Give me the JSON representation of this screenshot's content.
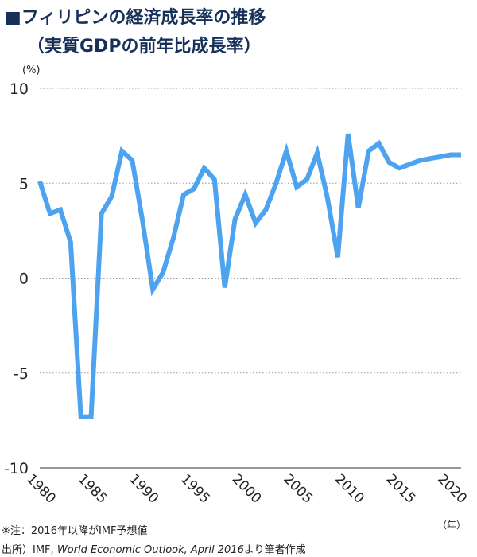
{
  "header": {
    "title": "■フィリピンの経済成長率の推移",
    "subtitle": "（実質GDPの前年比成長率）"
  },
  "footer": {
    "note": "※注：2016年以降がIMF予想値",
    "source_prefix": "出所）IMF,",
    "source_title": "World Economic Outlook, April 2016",
    "source_suffix": "より筆者作成"
  },
  "chart_data": {
    "type": "line",
    "title": "■フィリピンの経済成長率の推移",
    "subtitle": "（実質GDPの前年比成長率）",
    "ylabel": "(%)",
    "xlabel": "（年）",
    "ylim": [
      -10,
      10
    ],
    "xlim": [
      1980,
      2021
    ],
    "yticks": [
      10,
      5,
      0,
      -5,
      -10
    ],
    "ytick_labels": [
      "10",
      "5",
      "0",
      "-5",
      "-10"
    ],
    "xticks": [
      1980,
      1985,
      1990,
      1995,
      2000,
      2005,
      2010,
      2015,
      2020
    ],
    "xtick_labels": [
      "1980",
      "1985",
      "1990",
      "1995",
      "2000",
      "2005",
      "2010",
      "2015",
      "2020"
    ],
    "grid": "horizontal-dotted",
    "color": "#4da3f0",
    "x": [
      1980,
      1981,
      1982,
      1983,
      1984,
      1985,
      1986,
      1987,
      1988,
      1989,
      1990,
      1991,
      1992,
      1993,
      1994,
      1995,
      1996,
      1997,
      1998,
      1999,
      2000,
      2001,
      2002,
      2003,
      2004,
      2005,
      2006,
      2007,
      2008,
      2009,
      2010,
      2011,
      2012,
      2013,
      2014,
      2015,
      2016,
      2017,
      2018,
      2019,
      2020,
      2021
    ],
    "values": [
      5.1,
      3.4,
      3.6,
      1.9,
      -7.3,
      -7.3,
      3.4,
      4.3,
      6.7,
      6.2,
      3.0,
      -0.6,
      0.3,
      2.1,
      4.4,
      4.7,
      5.8,
      5.2,
      -0.5,
      3.1,
      4.4,
      2.9,
      3.6,
      5.0,
      6.7,
      4.8,
      5.2,
      6.6,
      4.2,
      1.1,
      7.6,
      3.7,
      6.7,
      7.1,
      6.1,
      5.8,
      6.0,
      6.2,
      6.3,
      6.4,
      6.5,
      6.5
    ]
  }
}
